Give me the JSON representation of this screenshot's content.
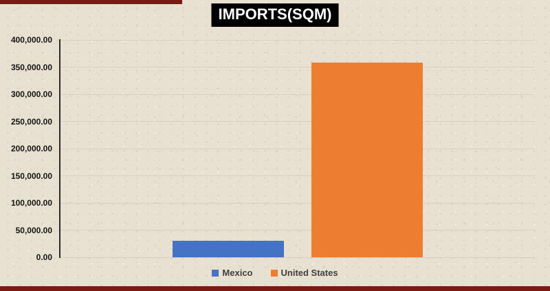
{
  "frame": {
    "accent_color": "#7b1a12",
    "background_color": "#e8e1d1"
  },
  "chart": {
    "title": "IMPORTS(SQM)",
    "title_bg": "#000000",
    "title_color": "#ffffff",
    "axis_color": "#2a2a2a",
    "gridline_color": "#d3cfc3",
    "tick_text_color": "#141414",
    "legend_text_color": "#3f3f3f"
  },
  "chart_data": {
    "type": "bar",
    "title": "IMPORTS(SQM)",
    "categories": [
      "Mexico",
      "United States"
    ],
    "values": [
      30000,
      358000
    ],
    "series_colors": [
      "#4472c4",
      "#ed7d31"
    ],
    "xlabel": "",
    "ylabel": "",
    "ylim": [
      0,
      400000
    ],
    "ytick_step": 50000,
    "ytick_labels": [
      "0.00",
      "50,000.00",
      "100,000.00",
      "150,000.00",
      "200,000.00",
      "250,000.00",
      "300,000.00",
      "350,000.00",
      "400,000.00"
    ],
    "grid": true,
    "legend_position": "bottom"
  },
  "legend": {
    "items": [
      {
        "label": "Mexico",
        "color": "#4472c4"
      },
      {
        "label": "United States",
        "color": "#ed7d31"
      }
    ]
  }
}
